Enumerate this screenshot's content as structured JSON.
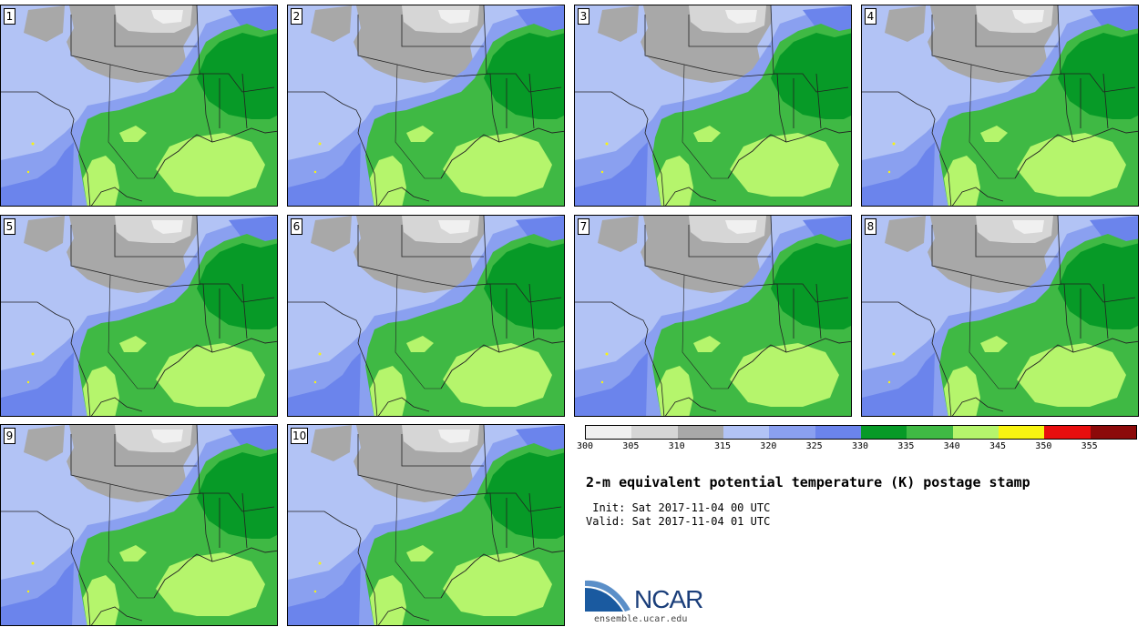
{
  "panels": [
    {
      "label": "1"
    },
    {
      "label": "2"
    },
    {
      "label": "3"
    },
    {
      "label": "4"
    },
    {
      "label": "5"
    },
    {
      "label": "6"
    },
    {
      "label": "7"
    },
    {
      "label": "8"
    },
    {
      "label": "9"
    },
    {
      "label": "10"
    }
  ],
  "legend": {
    "ticks": [
      "300",
      "305",
      "310",
      "315",
      "320",
      "325",
      "330",
      "335",
      "340",
      "345",
      "350",
      "355"
    ],
    "colors": [
      "#f0f0f0",
      "#d6d6d6",
      "#a8a8a8",
      "#b2c3f5",
      "#8aa0f0",
      "#6b84ec",
      "#079a27",
      "#3fb944",
      "#b5f56c",
      "#f8f411",
      "#e80e0e",
      "#8c0a0a"
    ]
  },
  "title": "2-m equivalent potential temperature (K) postage stamp",
  "init": " Init: Sat 2017-11-04 00 UTC",
  "valid": "Valid: Sat 2017-11-04 01 UTC",
  "logo_text": "NCAR",
  "url": "ensemble.ucar.edu"
}
